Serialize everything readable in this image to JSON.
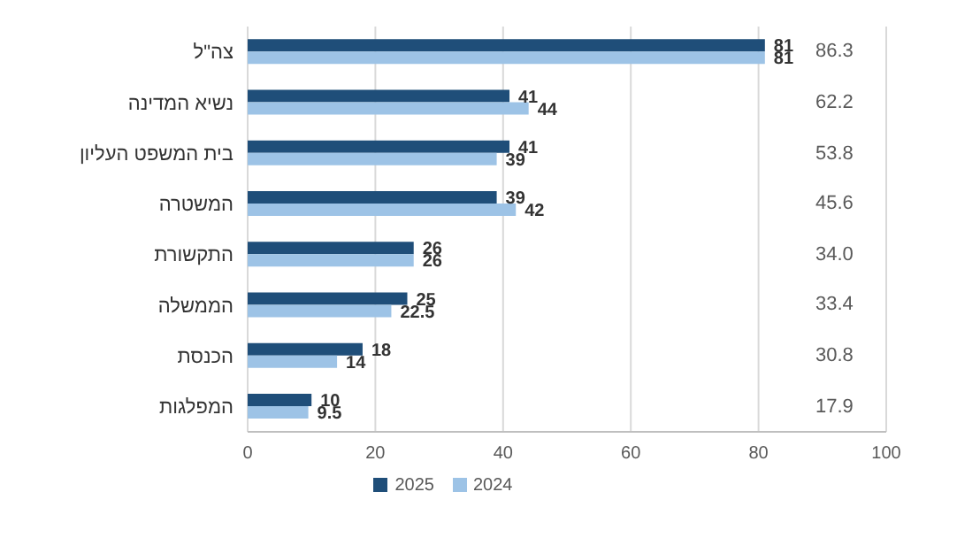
{
  "chart_data": {
    "type": "bar",
    "orientation": "horizontal",
    "categories": [
      "צה\"ל",
      "נשיא המדינה",
      "בית המשפט העליון",
      "המשטרה",
      "התקשורת",
      "הממשלה",
      "הכנסת",
      "המפלגות"
    ],
    "series": [
      {
        "name": "2025",
        "color": "#1f4e79",
        "values": [
          81,
          41,
          41,
          39,
          26,
          25,
          18,
          10
        ]
      },
      {
        "name": "2024",
        "color": "#9dc3e6",
        "values": [
          81,
          44,
          39,
          42,
          26,
          22.5,
          14,
          9.5
        ]
      }
    ],
    "xlim": [
      0,
      100
    ],
    "xticks": [
      0,
      20,
      40,
      60,
      80,
      100
    ],
    "grid": "x",
    "legend": "bottom",
    "data_labels": true,
    "annotations": [
      "86.3",
      "62.2",
      "53.8",
      "45.6",
      "34.0",
      "33.4",
      "30.8",
      "17.9"
    ]
  }
}
